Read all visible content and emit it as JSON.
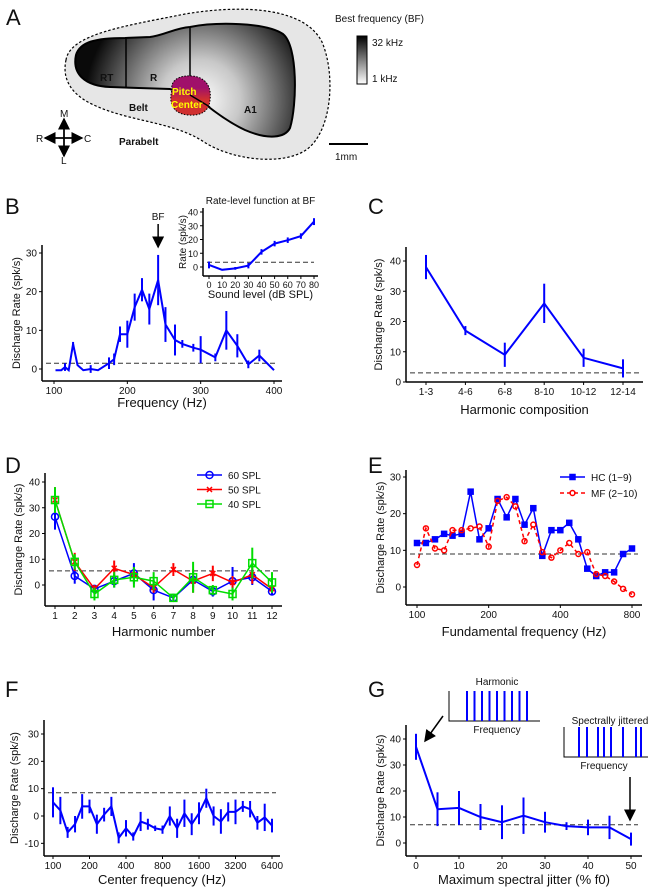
{
  "panel_letters": {
    "a": "A",
    "b": "B",
    "c": "C",
    "d": "D",
    "e": "E",
    "f": "F",
    "g": "G"
  },
  "panel_a": {
    "colorbar_title": "Best frequency (BF)",
    "colorbar_high": "32 kHz",
    "colorbar_low": "1 kHz",
    "regions": {
      "rt": "RT",
      "r": "R",
      "a1": "A1",
      "belt": "Belt",
      "parabelt": "Parabelt",
      "pitch_line1": "Pitch",
      "pitch_line2": "Center"
    },
    "compass": {
      "m": "M",
      "l": "L",
      "r": "R",
      "c": "C"
    },
    "scale_label": "1mm",
    "colors": {
      "pitch_center_top": "#a0106a",
      "pitch_center_bottom": "#d03030",
      "pitch_label": "#ffff00",
      "belt_fill": "#e6e6e6"
    }
  },
  "chart_data": [
    {
      "id": "B",
      "type": "line",
      "xlabel": "Frequency (Hz)",
      "ylabel": "Discharge Rate (spk/s)",
      "xticks": [
        100,
        200,
        300,
        400
      ],
      "yticks": [
        0,
        10,
        20,
        30
      ],
      "baseline": 1.5,
      "color": "#0000ff",
      "annotation": {
        "label": "BF",
        "x": 242
      },
      "x": [
        102,
        110,
        115,
        120,
        126,
        132,
        140,
        150,
        160,
        175,
        182,
        190,
        200,
        210,
        220,
        230,
        242,
        252,
        265,
        275,
        290,
        300,
        320,
        335,
        350,
        365,
        380,
        400
      ],
      "y": [
        -0.3,
        -0.3,
        0.5,
        -0.3,
        6.5,
        1,
        -0.3,
        0,
        -0.3,
        1.5,
        2.5,
        9,
        9,
        16,
        20.5,
        15.5,
        23,
        11.5,
        7.5,
        6.5,
        5.5,
        5,
        3,
        10,
        6,
        1.2,
        3.5,
        -0.3
      ],
      "err": [
        0,
        0,
        1,
        0,
        0.5,
        0,
        0,
        1,
        0,
        1.5,
        1.5,
        2,
        3.5,
        3.5,
        3,
        4,
        6.5,
        4.5,
        4,
        1,
        1,
        3.5,
        1,
        5,
        3,
        1,
        1.5,
        0
      ]
    },
    {
      "id": "B_inset",
      "type": "line",
      "title": "Rate-level function at BF",
      "xlabel": "Sound level (dB SPL)",
      "ylabel": "Rate (spk/s)",
      "xticks": [
        0,
        10,
        20,
        30,
        40,
        50,
        60,
        70,
        80
      ],
      "yticks": [
        0,
        10,
        20,
        30,
        40
      ],
      "baseline": 3.5,
      "color": "#0000ff",
      "x": [
        0,
        10,
        20,
        30,
        40,
        50,
        60,
        70,
        80
      ],
      "y": [
        1.5,
        -2,
        -1,
        1,
        11,
        17,
        19.5,
        22.5,
        33
      ],
      "err": [
        2.5,
        0.5,
        1,
        2,
        2,
        2,
        2,
        2,
        2.5
      ]
    },
    {
      "id": "C",
      "type": "line",
      "xlabel": "Harmonic composition",
      "ylabel": "Discharge Rate (spk/s)",
      "categories": [
        "1-3",
        "4-6",
        "6-8",
        "8-10",
        "10-12",
        "12-14"
      ],
      "yticks": [
        0,
        10,
        20,
        30,
        40
      ],
      "baseline": 3,
      "color": "#0000ff",
      "y": [
        38,
        17,
        9,
        26,
        8,
        4.5
      ],
      "err": [
        4,
        1.5,
        4,
        6.5,
        3,
        3
      ]
    },
    {
      "id": "D",
      "type": "line",
      "xlabel": "Harmonic number",
      "ylabel": "Discharge Rate (spk/s)",
      "xticks": [
        1,
        2,
        3,
        4,
        5,
        6,
        7,
        8,
        9,
        10,
        11,
        12
      ],
      "yticks": [
        0,
        10,
        20,
        30,
        40
      ],
      "baseline": 5.5,
      "legend_position": "top-right",
      "x": [
        1,
        2,
        3,
        4,
        5,
        6,
        7,
        8,
        9,
        10,
        11,
        12
      ],
      "series": [
        {
          "name": "60 SPL",
          "color": "#0000ff",
          "marker": "circle",
          "y": [
            26.5,
            3.5,
            -1.5,
            1.5,
            4.5,
            -2,
            -5,
            2,
            -2.5,
            1.5,
            3,
            -2.5
          ],
          "err": [
            5,
            3,
            1.5,
            2.5,
            4,
            4,
            1.5,
            3,
            2,
            5.5,
            3,
            1.5
          ]
        },
        {
          "name": "50 SPL",
          "color": "#ff0000",
          "marker": "x",
          "y": [
            33,
            9,
            -1.5,
            6.5,
            4,
            -1,
            6,
            1.5,
            4.5,
            1,
            4,
            -1.5
          ],
          "err": [
            5,
            3.5,
            1.5,
            3,
            2,
            2,
            2.5,
            4.5,
            3,
            2.5,
            3.5,
            1.5
          ]
        },
        {
          "name": "40 SPL",
          "color": "#00dd00",
          "marker": "square",
          "y": [
            33,
            9,
            -3.5,
            2,
            3,
            1.5,
            -5,
            3,
            -2,
            -3.5,
            8.5,
            1
          ],
          "err": [
            5,
            3,
            2.5,
            3,
            4,
            3.5,
            1.5,
            6,
            2,
            2.5,
            6,
            4
          ]
        }
      ]
    },
    {
      "id": "E",
      "type": "line",
      "xscale": "log",
      "xlabel": "Fundamental frequency (Hz)",
      "ylabel": "Discharge Rate (spk/s)",
      "xticks": [
        100,
        200,
        400,
        800
      ],
      "yticks": [
        0,
        10,
        20,
        30
      ],
      "baseline": 9,
      "legend_position": "top-right",
      "x": [
        100,
        109,
        119,
        130,
        141,
        154,
        168,
        183,
        200,
        218,
        238,
        259,
        283,
        308,
        336,
        367,
        400,
        436,
        476,
        519,
        566,
        617,
        673,
        734,
        800
      ],
      "series": [
        {
          "name": "HC (1−9)",
          "color": "#0000ff",
          "marker": "square",
          "dashed": false,
          "y": [
            12,
            12,
            13,
            14.5,
            14,
            14.5,
            26,
            13,
            16,
            24,
            19,
            24,
            17,
            21.5,
            8.5,
            15.5,
            15.5,
            17.5,
            13,
            5,
            3,
            4,
            4,
            9,
            10.5
          ]
        },
        {
          "name": "MF (2−10)",
          "color": "#ff0000",
          "marker": "circle",
          "dashed": true,
          "y": [
            6,
            16,
            10.5,
            10,
            15.5,
            15.5,
            16,
            16.5,
            11,
            23.5,
            24.5,
            22,
            12.5,
            17,
            9.5,
            8,
            10,
            12,
            9,
            9.5,
            3.5,
            3,
            1.5,
            -0.5,
            -2
          ]
        }
      ]
    },
    {
      "id": "F",
      "type": "line",
      "xscale": "log",
      "xlabel": "Center frequency (Hz)",
      "ylabel": "Discharge Rate (spk/s)",
      "xticks": [
        100,
        200,
        400,
        800,
        1600,
        3200,
        6400
      ],
      "yticks": [
        -10,
        0,
        10,
        20,
        30
      ],
      "baseline": 8.5,
      "color": "#0000ff",
      "x": [
        100,
        115,
        132,
        152,
        174,
        200,
        230,
        264,
        303,
        348,
        400,
        459,
        528,
        606,
        696,
        800,
        919,
        1056,
        1213,
        1393,
        1600,
        1838,
        2111,
        2425,
        2786,
        3200,
        3676,
        4222,
        4850,
        5572,
        6400
      ],
      "y": [
        5,
        2,
        -6,
        -3,
        3.5,
        3.5,
        -3,
        0.5,
        3.5,
        -8,
        -4.5,
        -7.5,
        -2,
        -3,
        -4.5,
        -5,
        0,
        -4.5,
        1,
        -3,
        1,
        6.5,
        0,
        -2,
        1.5,
        1.5,
        3.5,
        2.5,
        -2.5,
        -0.5,
        -3.5
      ],
      "err": [
        5.5,
        5,
        2,
        3,
        4.5,
        2.5,
        3.5,
        2.5,
        3.5,
        2,
        3,
        1.5,
        3.5,
        2,
        1,
        1.5,
        3.5,
        3.5,
        5,
        4,
        4,
        3.5,
        3.5,
        4.5,
        3.5,
        4.5,
        2,
        3,
        2.5,
        5,
        2.5
      ]
    },
    {
      "id": "G",
      "type": "line",
      "xlabel": "Maximum spectral jitter (% f0)",
      "ylabel": "Discharge Rate (spk/s)",
      "xticks": [
        0,
        10,
        20,
        30,
        40,
        50
      ],
      "yticks": [
        0,
        10,
        20,
        30,
        40
      ],
      "baseline": 7,
      "color": "#0000ff",
      "x": [
        0,
        5,
        10,
        15,
        20,
        25,
        30,
        35,
        40,
        45,
        50
      ],
      "y": [
        37,
        13,
        13.5,
        10,
        8,
        10.5,
        8,
        6.5,
        6,
        6,
        1.5
      ],
      "err": [
        5,
        6.5,
        6.5,
        5,
        6.5,
        7,
        4,
        1.5,
        3,
        4.5,
        2.5
      ],
      "insets": {
        "harmonic": {
          "title": "Harmonic",
          "xlabel": "Frequency"
        },
        "jittered": {
          "title": "Spectrally jittered",
          "xlabel": "Frequency"
        }
      }
    }
  ]
}
